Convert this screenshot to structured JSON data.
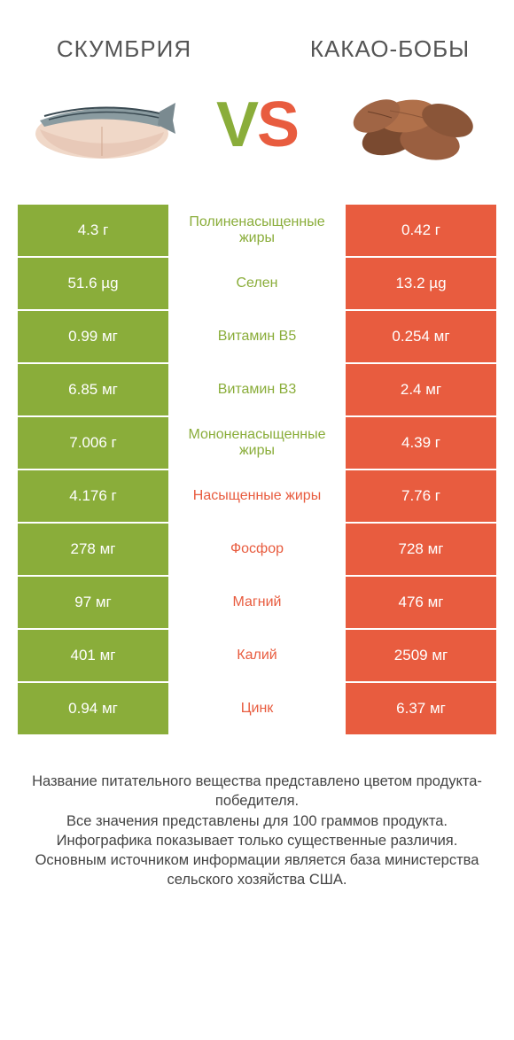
{
  "header": {
    "left_title": "СКУМБРИЯ",
    "right_title": "КАКАО-БОБЫ",
    "vs_v": "V",
    "vs_s": "S"
  },
  "colors": {
    "left": "#8aad3a",
    "right": "#e85c3f",
    "mid_bg": "#ffffff",
    "text_dark": "#444444"
  },
  "rows": [
    {
      "left": "4.3 г",
      "label": "Полиненасыщенные жиры",
      "right": "0.42 г",
      "winner": "left"
    },
    {
      "left": "51.6 µg",
      "label": "Селен",
      "right": "13.2 µg",
      "winner": "left"
    },
    {
      "left": "0.99 мг",
      "label": "Витамин B5",
      "right": "0.254 мг",
      "winner": "left"
    },
    {
      "left": "6.85 мг",
      "label": "Витамин B3",
      "right": "2.4 мг",
      "winner": "left"
    },
    {
      "left": "7.006 г",
      "label": "Мононенасыщенные жиры",
      "right": "4.39 г",
      "winner": "left"
    },
    {
      "left": "4.176 г",
      "label": "Насыщенные жиры",
      "right": "7.76 г",
      "winner": "right"
    },
    {
      "left": "278 мг",
      "label": "Фосфор",
      "right": "728 мг",
      "winner": "right"
    },
    {
      "left": "97 мг",
      "label": "Магний",
      "right": "476 мг",
      "winner": "right"
    },
    {
      "left": "401 мг",
      "label": "Калий",
      "right": "2509 мг",
      "winner": "right"
    },
    {
      "left": "0.94 мг",
      "label": "Цинк",
      "right": "6.37 мг",
      "winner": "right"
    }
  ],
  "footer": {
    "line1": "Название питательного вещества представлено цветом продукта-победителя.",
    "line2": "Все значения представлены для 100 граммов продукта.",
    "line3": "Инфографика показывает только существенные различия.",
    "line4": "Основным источником информации является база министерства сельского хозяйства США."
  },
  "illustrations": {
    "fish": {
      "body_color": "#e8c9b8",
      "skin_color": "#8a9ba0",
      "stripe_color": "#3a4a52"
    },
    "beans": {
      "color_light": "#b0704a",
      "color_dark": "#7a4a30"
    }
  }
}
